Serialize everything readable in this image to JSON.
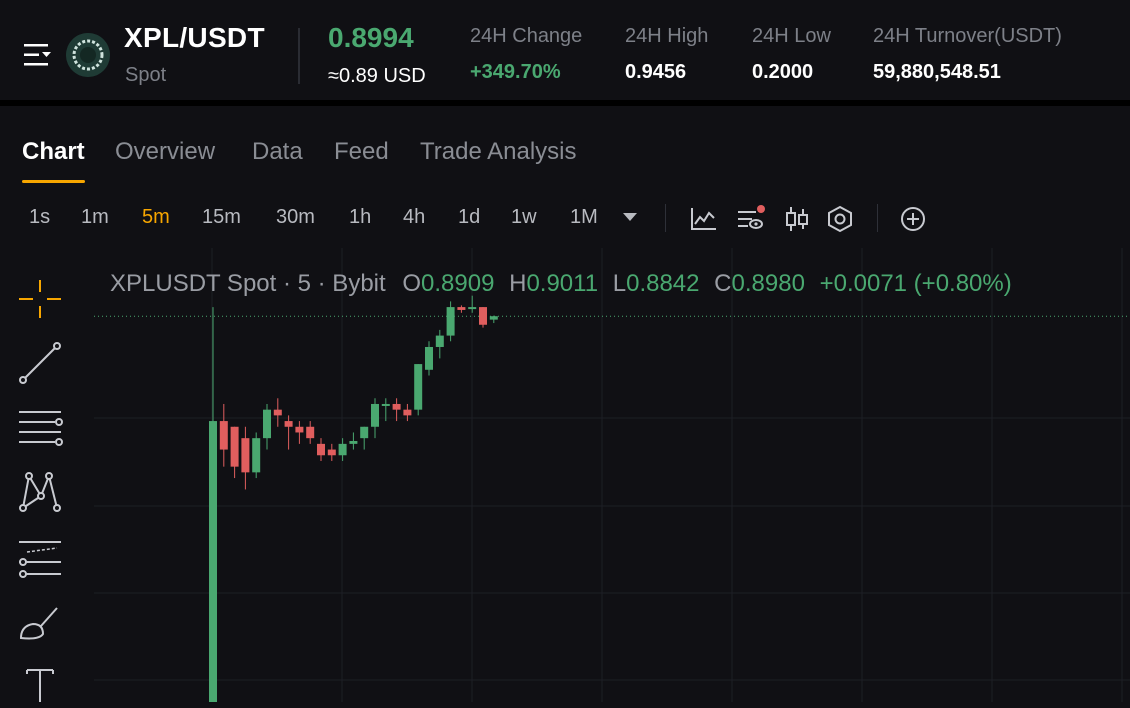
{
  "header": {
    "pair": "XPL/USDT",
    "market_type": "Spot",
    "last_price": "0.8994",
    "price_usd": "≈0.89 USD",
    "stats": [
      {
        "label": "24H Change",
        "value": "+349.70%",
        "positive": true
      },
      {
        "label": "24H High",
        "value": "0.9456",
        "positive": false
      },
      {
        "label": "24H Low",
        "value": "0.2000",
        "positive": false
      },
      {
        "label": "24H Turnover(USDT)",
        "value": "59,880,548.51",
        "positive": false
      }
    ]
  },
  "tabs": [
    "Chart",
    "Overview",
    "Data",
    "Feed",
    "Trade Analysis"
  ],
  "active_tab": "Chart",
  "intervals": [
    "1s",
    "1m",
    "5m",
    "15m",
    "30m",
    "1h",
    "4h",
    "1d",
    "1w",
    "1M"
  ],
  "active_interval": "5m",
  "toolbar_icons": [
    "indicators-icon",
    "chart-settings-icon",
    "candle-style-icon",
    "settings-hexagon-icon",
    "add-icon"
  ],
  "draw_tools": [
    "crosshair-icon",
    "trend-line-icon",
    "horizontal-lines-icon",
    "pattern-icon",
    "fib-tool-icon",
    "brush-icon",
    "text-icon"
  ],
  "legend": {
    "title": "XPLUSDT Spot · 5 · Bybit",
    "o_label": "O",
    "o_value": "0.8909",
    "h_label": "H",
    "h_value": "0.9011",
    "l_label": "L",
    "l_value": "0.8842",
    "c_label": "C",
    "c_value": "0.8980",
    "change": "+0.0071 (+0.80%)"
  },
  "colors": {
    "up": "#4aa870",
    "down": "#e05e5e",
    "accent": "#f7a600",
    "background": "#101014"
  },
  "chart_data": {
    "type": "candlestick",
    "interval": "5m",
    "candles": [
      {
        "o": 0.2,
        "h": 0.9,
        "l": 0.2,
        "c": 0.7
      },
      {
        "o": 0.7,
        "h": 0.73,
        "l": 0.62,
        "c": 0.65
      },
      {
        "o": 0.69,
        "h": 0.69,
        "l": 0.6,
        "c": 0.62
      },
      {
        "o": 0.67,
        "h": 0.69,
        "l": 0.58,
        "c": 0.61
      },
      {
        "o": 0.61,
        "h": 0.68,
        "l": 0.6,
        "c": 0.67
      },
      {
        "o": 0.67,
        "h": 0.73,
        "l": 0.65,
        "c": 0.72
      },
      {
        "o": 0.72,
        "h": 0.74,
        "l": 0.69,
        "c": 0.71
      },
      {
        "o": 0.7,
        "h": 0.71,
        "l": 0.65,
        "c": 0.69
      },
      {
        "o": 0.69,
        "h": 0.7,
        "l": 0.66,
        "c": 0.68
      },
      {
        "o": 0.69,
        "h": 0.7,
        "l": 0.66,
        "c": 0.67
      },
      {
        "o": 0.66,
        "h": 0.67,
        "l": 0.63,
        "c": 0.64
      },
      {
        "o": 0.65,
        "h": 0.66,
        "l": 0.63,
        "c": 0.64
      },
      {
        "o": 0.64,
        "h": 0.67,
        "l": 0.63,
        "c": 0.66
      },
      {
        "o": 0.66,
        "h": 0.68,
        "l": 0.65,
        "c": 0.665
      },
      {
        "o": 0.67,
        "h": 0.69,
        "l": 0.65,
        "c": 0.69
      },
      {
        "o": 0.69,
        "h": 0.74,
        "l": 0.67,
        "c": 0.73
      },
      {
        "o": 0.73,
        "h": 0.74,
        "l": 0.7,
        "c": 0.73
      },
      {
        "o": 0.73,
        "h": 0.74,
        "l": 0.7,
        "c": 0.72
      },
      {
        "o": 0.72,
        "h": 0.73,
        "l": 0.7,
        "c": 0.71
      },
      {
        "o": 0.72,
        "h": 0.8,
        "l": 0.71,
        "c": 0.8
      },
      {
        "o": 0.79,
        "h": 0.84,
        "l": 0.78,
        "c": 0.83
      },
      {
        "o": 0.83,
        "h": 0.86,
        "l": 0.81,
        "c": 0.85
      },
      {
        "o": 0.85,
        "h": 0.91,
        "l": 0.84,
        "c": 0.9
      },
      {
        "o": 0.9,
        "h": 0.903,
        "l": 0.89,
        "c": 0.895
      },
      {
        "o": 0.897,
        "h": 0.92,
        "l": 0.89,
        "c": 0.9
      },
      {
        "o": 0.9,
        "h": 0.9,
        "l": 0.864,
        "c": 0.869
      },
      {
        "o": 0.878,
        "h": 0.885,
        "l": 0.872,
        "c": 0.884
      }
    ]
  }
}
